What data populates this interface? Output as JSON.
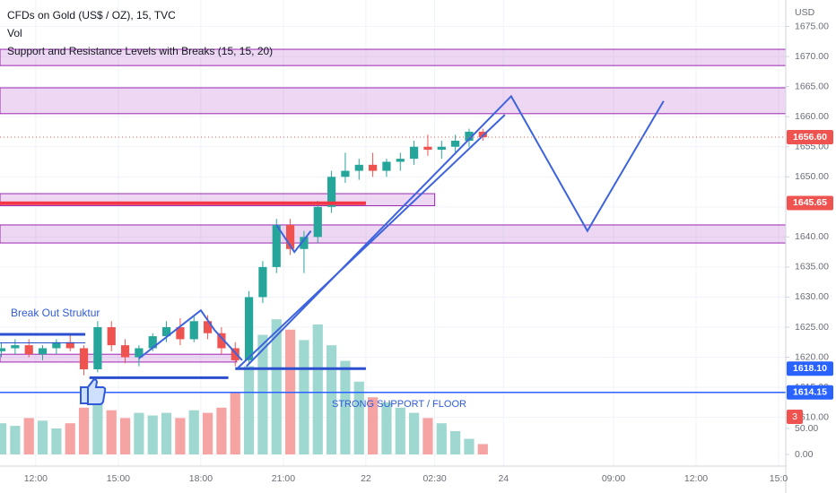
{
  "chart_data": {
    "type": "candlestick",
    "title": "CFDs on Gold (US$ / OZ), 15, TVC",
    "volume_label": "Vol",
    "indicator_label": "Support and Resistance Levels with Breaks (15, 15, 20)",
    "currency": "USD",
    "up_color": "#26a69a",
    "down_color": "#ef5350",
    "volume_up_color": "#9fd8d0",
    "volume_down_color": "#f5a3a3",
    "grid": true,
    "xlim": [
      10.7,
      39.26
    ],
    "ylim": [
      1601.9,
      1679.4
    ],
    "volume_ylim": [
      -22.4,
      874
    ],
    "xticks": [
      {
        "value": 12,
        "label": "12:00"
      },
      {
        "value": 15,
        "label": "15:00"
      },
      {
        "value": 18,
        "label": "18:00"
      },
      {
        "value": 21,
        "label": "21:00"
      },
      {
        "value": 24,
        "label": "22"
      },
      {
        "value": 26.5,
        "label": "02:30"
      },
      {
        "value": 29,
        "label": "24"
      },
      {
        "value": 33,
        "label": "09:00"
      },
      {
        "value": 36,
        "label": "12:00"
      },
      {
        "value": 39,
        "label": "15:0"
      }
    ],
    "yticks": [
      {
        "value": 1610,
        "label": "1610.00"
      },
      {
        "value": 1615,
        "label": "1615.00"
      },
      {
        "value": 1620,
        "label": "1620.00"
      },
      {
        "value": 1625,
        "label": "1625.00"
      },
      {
        "value": 1630,
        "label": "1630.00"
      },
      {
        "value": 1635,
        "label": "1635.00"
      },
      {
        "value": 1640,
        "label": "1640.00"
      },
      {
        "value": 1645,
        "label": "1645.00"
      },
      {
        "value": 1650,
        "label": "1650.00"
      },
      {
        "value": 1655,
        "label": "1655.00"
      },
      {
        "value": 1660,
        "label": "1660.00"
      },
      {
        "value": 1665,
        "label": "1665.00"
      },
      {
        "value": 1670,
        "label": "1670.00"
      },
      {
        "value": 1675,
        "label": "1675.00"
      }
    ],
    "volume_ticks": [
      {
        "value": 0,
        "label": "0.00"
      },
      {
        "value": 50,
        "label": "50.00"
      }
    ],
    "price_badges": [
      {
        "value": 1656.6,
        "label": "1656.60",
        "color": "#ef5350"
      },
      {
        "value": 1645.65,
        "label": "1645.65",
        "color": "#ef5350"
      },
      {
        "value": 1618.1,
        "label": "1618.10",
        "color": "#2962ff"
      },
      {
        "value": 1614.15,
        "label": "1614.15",
        "color": "#2962ff"
      }
    ],
    "volume_badge": {
      "value": 3,
      "color": "#ef5350"
    },
    "x": [
      10.75,
      11.25,
      11.75,
      12.25,
      12.75,
      13.25,
      13.75,
      14.25,
      14.75,
      15.25,
      15.75,
      16.25,
      16.75,
      17.25,
      17.75,
      18.25,
      18.75,
      19.25,
      19.75,
      20.25,
      20.75,
      21.25,
      21.75,
      22.25,
      22.75,
      23.25,
      23.75,
      24.25,
      24.75,
      25.25,
      25.75,
      26.25,
      26.75,
      27.25,
      27.75,
      28.25
    ],
    "candles": [
      [
        1621,
        1622.5,
        1620,
        1621.5
      ],
      [
        1621.5,
        1623,
        1620.5,
        1622
      ],
      [
        1622,
        1623,
        1620,
        1620.5
      ],
      [
        1620.5,
        1622,
        1619.5,
        1621.5
      ],
      [
        1621.5,
        1623,
        1620.5,
        1622.5
      ],
      [
        1622.5,
        1624,
        1621,
        1621.5
      ],
      [
        1621.5,
        1622,
        1617,
        1618
      ],
      [
        1618,
        1626,
        1617.5,
        1625
      ],
      [
        1625,
        1626,
        1621,
        1622
      ],
      [
        1622,
        1623,
        1619,
        1620
      ],
      [
        1620,
        1622,
        1618.5,
        1621.5
      ],
      [
        1621.5,
        1624,
        1621,
        1623.5
      ],
      [
        1623.5,
        1626,
        1622.5,
        1625
      ],
      [
        1625,
        1626.5,
        1622,
        1623
      ],
      [
        1623,
        1627,
        1622.5,
        1626
      ],
      [
        1626,
        1627,
        1623,
        1624
      ],
      [
        1624,
        1625,
        1620.5,
        1621.5
      ],
      [
        1621.5,
        1622.5,
        1618.5,
        1619.5
      ],
      [
        1619.5,
        1631,
        1619,
        1630
      ],
      [
        1630,
        1636,
        1629,
        1635
      ],
      [
        1635,
        1643,
        1634,
        1642
      ],
      [
        1642,
        1643,
        1637,
        1638
      ],
      [
        1638,
        1641,
        1634,
        1640
      ],
      [
        1640,
        1646,
        1639,
        1645
      ],
      [
        1645,
        1651,
        1644,
        1650
      ],
      [
        1650,
        1654,
        1649,
        1651
      ],
      [
        1651,
        1653,
        1649.5,
        1652
      ],
      [
        1652,
        1654,
        1650,
        1651
      ],
      [
        1651,
        1653,
        1650,
        1652.5
      ],
      [
        1652.5,
        1654,
        1651,
        1653
      ],
      [
        1653,
        1656,
        1652,
        1655
      ],
      [
        1655,
        1657,
        1653.5,
        1654.5
      ],
      [
        1654.5,
        1656,
        1653,
        1655
      ],
      [
        1655,
        1657,
        1654,
        1656
      ],
      [
        1656,
        1658,
        1655,
        1657.5
      ],
      [
        1657.5,
        1658,
        1656,
        1656.6
      ]
    ],
    "volumes": [
      60,
      55,
      70,
      65,
      50,
      60,
      90,
      110,
      85,
      70,
      80,
      75,
      80,
      70,
      85,
      80,
      90,
      120,
      170,
      230,
      260,
      240,
      220,
      250,
      210,
      180,
      140,
      110,
      100,
      90,
      80,
      70,
      60,
      45,
      30,
      20
    ],
    "zones": [
      {
        "from": 10.7,
        "to": 39.26,
        "low": 1668.5,
        "high": 1671.2
      },
      {
        "from": 10.7,
        "to": 39.26,
        "low": 1660.5,
        "high": 1664.8
      },
      {
        "from": 10.7,
        "to": 26.5,
        "low": 1645.2,
        "high": 1647.2
      },
      {
        "from": 10.7,
        "to": 39.26,
        "low": 1639,
        "high": 1642
      },
      {
        "from": 10.7,
        "to": 19.3,
        "low": 1619.2,
        "high": 1620.5
      }
    ],
    "hlines": [
      {
        "price": 1645.6,
        "from": 10.7,
        "to": 24,
        "color": "#f23645",
        "width": 4
      },
      {
        "price": 1623.8,
        "from": 10.7,
        "to": 13.8,
        "color": "#2b4fcf",
        "width": 3
      },
      {
        "price": 1622.4,
        "from": 10.7,
        "to": 13.8,
        "color": "#2b4fcf",
        "width": 1
      },
      {
        "price": 1616.6,
        "from": 13.95,
        "to": 19.0,
        "color": "#2b4fcf",
        "width": 3
      },
      {
        "price": 1618.1,
        "from": 19.25,
        "to": 24,
        "color": "#2b4fcf",
        "width": 3
      },
      {
        "price": 1614.15,
        "from": 10.7,
        "to": 39.26,
        "color": "#2962ff",
        "width": 1.5
      }
    ],
    "polylines": [
      {
        "color": "#3d63dd",
        "points": [
          [
            15.75,
            1619.8
          ],
          [
            18.0,
            1627.8
          ],
          [
            18.5,
            1624.5
          ],
          [
            19.5,
            1619.5
          ]
        ]
      },
      {
        "color": "#3d63dd",
        "points": [
          [
            20.75,
            1642
          ],
          [
            21.4,
            1637.5
          ],
          [
            22.0,
            1641
          ]
        ]
      },
      {
        "color": "#3d63dd",
        "points": [
          [
            19.34,
            1618.2
          ],
          [
            29.05,
            1660.3
          ]
        ]
      },
      {
        "color": "#3d63dd",
        "points": [
          [
            19.66,
            1618.5
          ],
          [
            29.28,
            1663.4
          ],
          [
            32.05,
            1641
          ],
          [
            34.82,
            1662.6
          ]
        ]
      }
    ],
    "annotations": [
      "Break Out Struktur",
      "STRONG SUPPORT / FLOOR"
    ]
  }
}
